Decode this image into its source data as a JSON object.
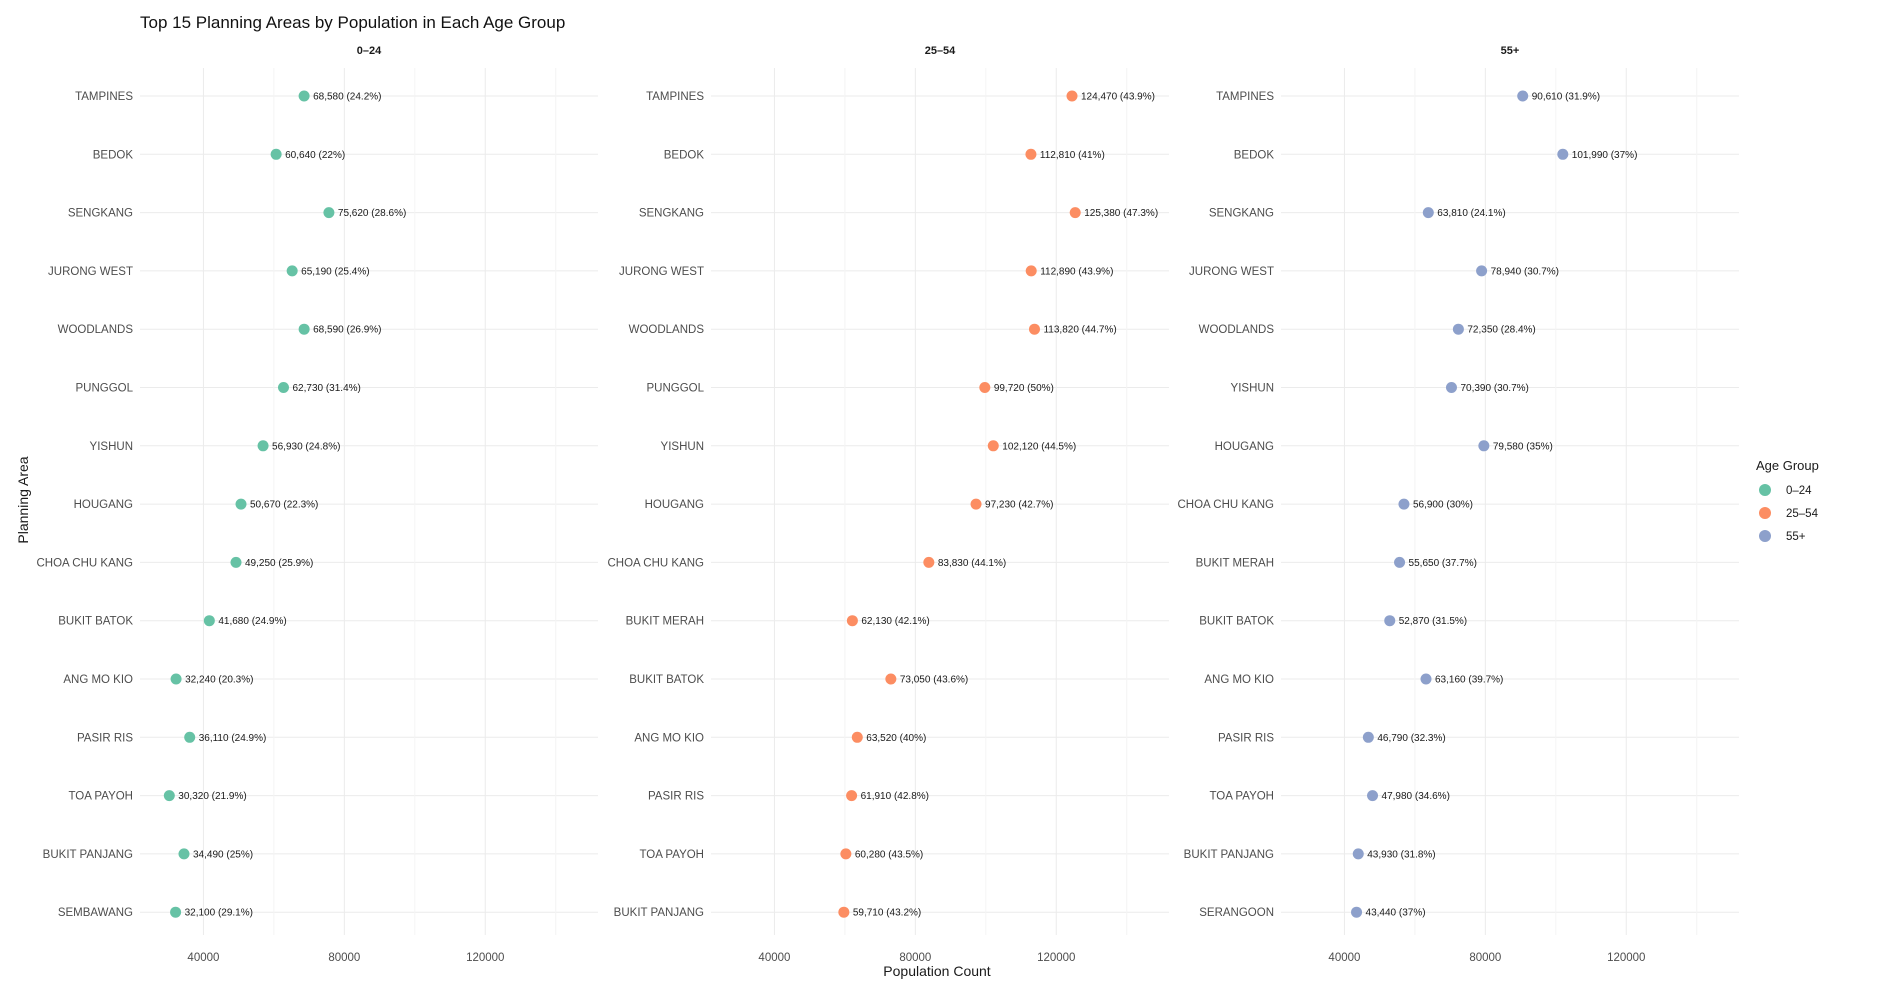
{
  "chart_data": {
    "type": "scatter",
    "title": "Top 15 Planning Areas by Population in Each Age Group",
    "xlabel": "Population Count",
    "ylabel": "Planning Area",
    "xlim": [
      22000,
      152000
    ],
    "x_ticks": [
      40000,
      80000,
      120000
    ],
    "x_tick_labels": [
      "40000",
      "80000",
      "120000"
    ],
    "grid": true,
    "legend": {
      "title": "Age Group",
      "placement": "right",
      "entries": [
        {
          "label": "0–24",
          "color": "#66c2a5"
        },
        {
          "label": "25–54",
          "color": "#fc8d62"
        },
        {
          "label": "55+",
          "color": "#8da0cb"
        }
      ]
    },
    "panels": [
      {
        "title": "0–24",
        "color": "#66c2a5",
        "points": [
          {
            "area": "TAMPINES",
            "value": 68580,
            "label": "68,580 (24.2%)"
          },
          {
            "area": "BEDOK",
            "value": 60640,
            "label": "60,640 (22%)"
          },
          {
            "area": "SENGKANG",
            "value": 75620,
            "label": "75,620 (28.6%)"
          },
          {
            "area": "JURONG WEST",
            "value": 65190,
            "label": "65,190 (25.4%)"
          },
          {
            "area": "WOODLANDS",
            "value": 68590,
            "label": "68,590 (26.9%)"
          },
          {
            "area": "PUNGGOL",
            "value": 62730,
            "label": "62,730 (31.4%)"
          },
          {
            "area": "YISHUN",
            "value": 56930,
            "label": "56,930 (24.8%)"
          },
          {
            "area": "HOUGANG",
            "value": 50670,
            "label": "50,670 (22.3%)"
          },
          {
            "area": "CHOA CHU KANG",
            "value": 49250,
            "label": "49,250 (25.9%)"
          },
          {
            "area": "BUKIT BATOK",
            "value": 41680,
            "label": "41,680 (24.9%)"
          },
          {
            "area": "ANG MO KIO",
            "value": 32240,
            "label": "32,240 (20.3%)"
          },
          {
            "area": "PASIR RIS",
            "value": 36110,
            "label": "36,110 (24.9%)"
          },
          {
            "area": "TOA PAYOH",
            "value": 30320,
            "label": "30,320 (21.9%)"
          },
          {
            "area": "BUKIT PANJANG",
            "value": 34490,
            "label": "34,490 (25%)"
          },
          {
            "area": "SEMBAWANG",
            "value": 32100,
            "label": "32,100 (29.1%)"
          }
        ]
      },
      {
        "title": "25–54",
        "color": "#fc8d62",
        "points": [
          {
            "area": "TAMPINES",
            "value": 124470,
            "label": "124,470 (43.9%)"
          },
          {
            "area": "BEDOK",
            "value": 112810,
            "label": "112,810 (41%)"
          },
          {
            "area": "SENGKANG",
            "value": 125380,
            "label": "125,380 (47.3%)"
          },
          {
            "area": "JURONG WEST",
            "value": 112890,
            "label": "112,890 (43.9%)"
          },
          {
            "area": "WOODLANDS",
            "value": 113820,
            "label": "113,820 (44.7%)"
          },
          {
            "area": "PUNGGOL",
            "value": 99720,
            "label": "99,720 (50%)"
          },
          {
            "area": "YISHUN",
            "value": 102120,
            "label": "102,120 (44.5%)"
          },
          {
            "area": "HOUGANG",
            "value": 97230,
            "label": "97,230 (42.7%)"
          },
          {
            "area": "CHOA CHU KANG",
            "value": 83830,
            "label": "83,830 (44.1%)"
          },
          {
            "area": "BUKIT MERAH",
            "value": 62130,
            "label": "62,130 (42.1%)"
          },
          {
            "area": "BUKIT BATOK",
            "value": 73050,
            "label": "73,050 (43.6%)"
          },
          {
            "area": "ANG MO KIO",
            "value": 63520,
            "label": "63,520 (40%)"
          },
          {
            "area": "PASIR RIS",
            "value": 61910,
            "label": "61,910 (42.8%)"
          },
          {
            "area": "TOA PAYOH",
            "value": 60280,
            "label": "60,280 (43.5%)"
          },
          {
            "area": "BUKIT PANJANG",
            "value": 59710,
            "label": "59,710 (43.2%)"
          }
        ]
      },
      {
        "title": "55+",
        "color": "#8da0cb",
        "points": [
          {
            "area": "TAMPINES",
            "value": 90610,
            "label": "90,610 (31.9%)"
          },
          {
            "area": "BEDOK",
            "value": 101990,
            "label": "101,990 (37%)"
          },
          {
            "area": "SENGKANG",
            "value": 63810,
            "label": "63,810 (24.1%)"
          },
          {
            "area": "JURONG WEST",
            "value": 78940,
            "label": "78,940 (30.7%)"
          },
          {
            "area": "WOODLANDS",
            "value": 72350,
            "label": "72,350 (28.4%)"
          },
          {
            "area": "YISHUN",
            "value": 70390,
            "label": "70,390 (30.7%)"
          },
          {
            "area": "HOUGANG",
            "value": 79580,
            "label": "79,580 (35%)"
          },
          {
            "area": "CHOA CHU KANG",
            "value": 56900,
            "label": "56,900 (30%)"
          },
          {
            "area": "BUKIT MERAH",
            "value": 55650,
            "label": "55,650 (37.7%)"
          },
          {
            "area": "BUKIT BATOK",
            "value": 52870,
            "label": "52,870 (31.5%)"
          },
          {
            "area": "ANG MO KIO",
            "value": 63160,
            "label": "63,160 (39.7%)"
          },
          {
            "area": "PASIR RIS",
            "value": 46790,
            "label": "46,790 (32.3%)"
          },
          {
            "area": "TOA PAYOH",
            "value": 47980,
            "label": "47,980 (34.6%)"
          },
          {
            "area": "BUKIT PANJANG",
            "value": 43930,
            "label": "43,930 (31.8%)"
          },
          {
            "area": "SERANGOON",
            "value": 43440,
            "label": "43,440 (37%)"
          }
        ]
      }
    ]
  }
}
